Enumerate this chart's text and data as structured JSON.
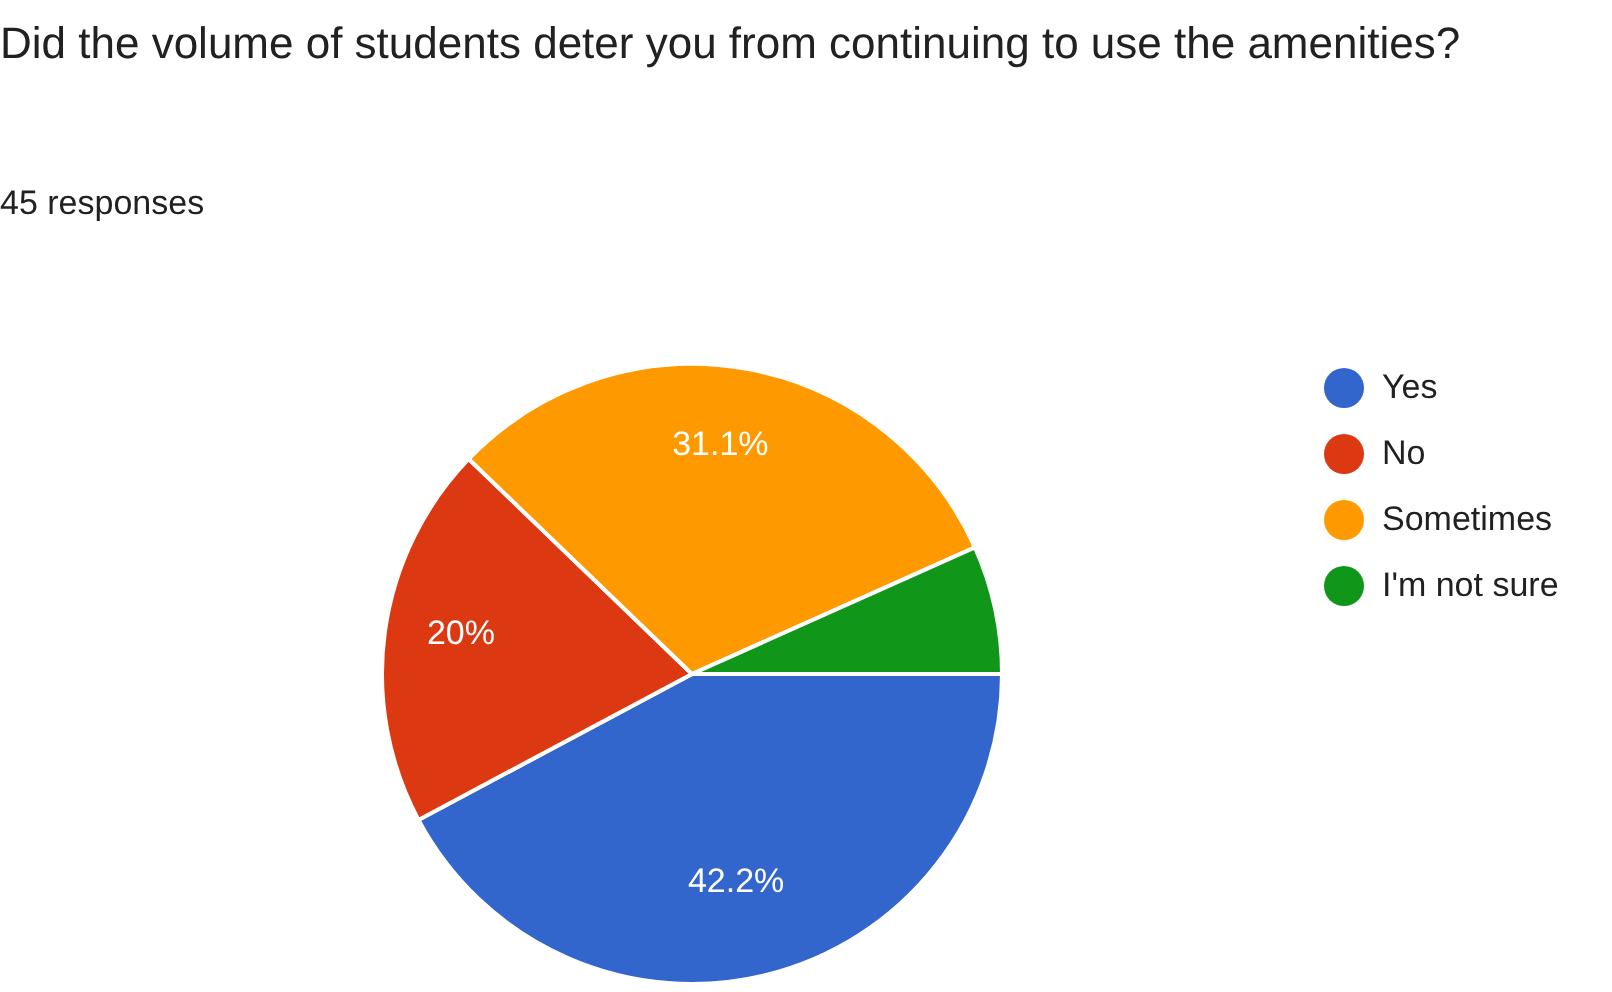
{
  "chart_data": {
    "type": "pie",
    "title": "Did the volume of students deter you from continuing to use the amenities?",
    "subtitle": "45 responses",
    "categories": [
      "Yes",
      "No",
      "Sometimes",
      "I'm not sure"
    ],
    "values": [
      42.2,
      20,
      31.1,
      6.7
    ],
    "colors": [
      "#3366cc",
      "#dc3912",
      "#ff9900",
      "#109618"
    ],
    "value_labels": [
      "42.2%",
      "20%",
      "31.1%",
      null
    ],
    "legend": "top right"
  }
}
